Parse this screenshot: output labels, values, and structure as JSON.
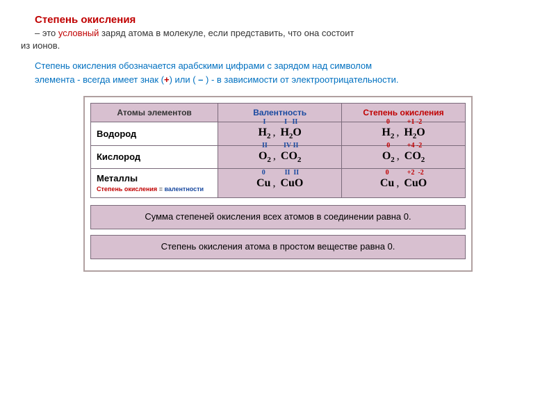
{
  "title": "Степень окисления",
  "definition": {
    "prefix": "– это ",
    "conditional": "условный",
    "rest1": " заряд атома в молекуле, если представить, что она состоит",
    "rest2": "из ионов."
  },
  "para2": {
    "line1": "Степень окисления обозначается арабскими цифрами с зарядом над  символом",
    "line2_a": "элемента - всегда имеет знак (",
    "plus": "+",
    "line2_b": ") или ( ",
    "minus": "–",
    "line2_c": " ) - в зависимости от электроотрицательности."
  },
  "table": {
    "headers": {
      "atoms": "Атомы элементов",
      "valence": "Валентность",
      "oxidation": "Степень окисления"
    },
    "rows": [
      {
        "name": "Водород",
        "valence_html": "<span class='formula'><span class='sup val-sup'>I</span><span class='base'>H<sub>2</sub></span></span>, <span class='formula'><span class='sup val-sup'>I&nbsp;&nbsp;&nbsp;II</span><span class='base'>H<sub>2</sub>O</span></span>",
        "oxidation_html": "<span class='formula'><span class='sup ox-sup'>0</span><span class='base'>H<sub>2</sub></span></span>, <span class='formula'><span class='sup ox-sup'>+1&nbsp;-2</span><span class='base'>H<sub>2</sub>O</span></span>"
      },
      {
        "name": "Кислород",
        "valence_html": "<span class='formula'><span class='sup val-sup'>II</span><span class='base'>O<sub>2</sub></span></span>, <span class='formula'><span class='sup val-sup'>IV&nbsp;II</span><span class='base'>CO<sub>2</sub></span></span>",
        "oxidation_html": "<span class='formula'><span class='sup ox-sup'>0</span><span class='base'>O<sub>2</sub></span></span>, <span class='formula'><span class='sup ox-sup'>+4&nbsp;-2</span><span class='base'>CO<sub>2</sub></span></span>"
      },
      {
        "name": "Металлы",
        "valence_html": "<span class='formula'><span class='sup val-sup'>0</span><span class='base'>Cu</span></span>, <span class='formula'><span class='sup val-sup'>II&nbsp;&nbsp;II</span><span class='base'>CuO</span></span>",
        "oxidation_html": "<span class='formula'><span class='sup ox-sup'>0</span><span class='base'>Cu</span></span>, <span class='formula'><span class='sup ox-sup'>+2&nbsp;&nbsp;-2</span><span class='base'>CuO</span></span>"
      }
    ],
    "metals_note": {
      "red": "Степень окисления",
      "eq": " = ",
      "blue": "валентности"
    }
  },
  "rules": {
    "r1": "Сумма степеней окисления всех атомов в соединении равна 0.",
    "r2": "Степень окисления атома в простом веществе равна 0."
  },
  "colors": {
    "header_bg": "#d8c0d0",
    "border": "#7a6a7a",
    "red": "#c00000",
    "blue": "#0070c0"
  }
}
